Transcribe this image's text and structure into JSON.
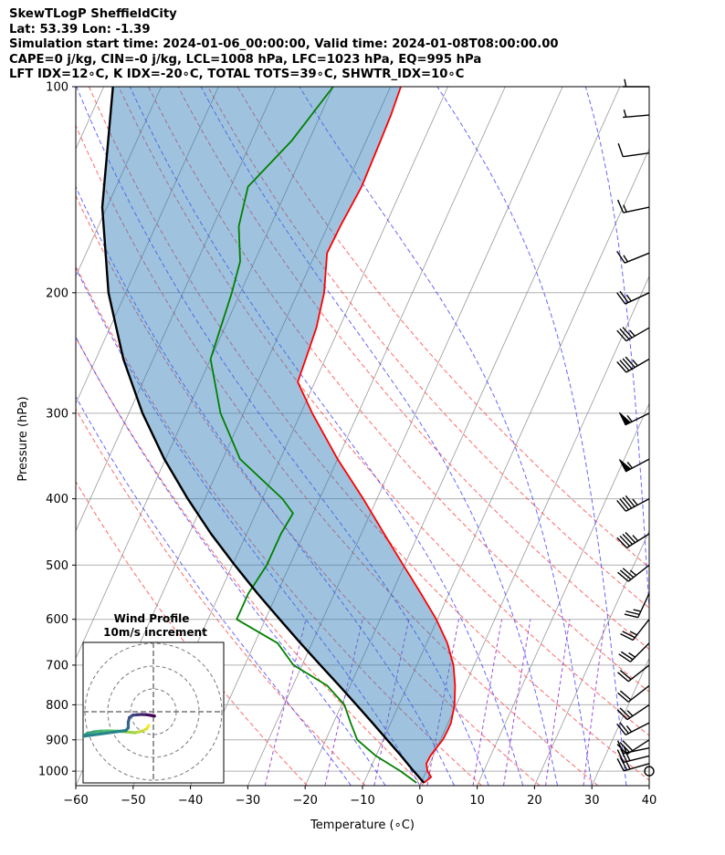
{
  "title_lines": [
    "SkewTLogP SheffieldCity",
    "Lat: 53.39   Lon: -1.39",
    "Simulation start time: 2024-01-06_00:00:00, Valid time: 2024-01-08T08:00:00.00",
    "CAPE=0 j/kg, CIN=-0 j/kg, LCL=1008 hPa, LFC=1023 hPa, EQ=995 hPa",
    "LFT IDX=12∘C, K IDX=-20∘C, TOTAL TOTS=39∘C, SHWTR_IDX=10∘C"
  ],
  "chart_data": {
    "type": "line",
    "chart_kind": "skew-T log-P diagram",
    "xlabel": "Temperature (∘C)",
    "ylabel": "Pressure (hPa)",
    "xlim": [
      -60,
      40
    ],
    "ylim": [
      1050,
      100
    ],
    "y_scale": "log",
    "grid": true,
    "x_ticks": [
      -60,
      -50,
      -40,
      -30,
      -20,
      -10,
      0,
      10,
      20,
      30,
      40
    ],
    "y_ticks": [
      100,
      200,
      300,
      400,
      500,
      600,
      700,
      800,
      900,
      1000
    ],
    "series": [
      {
        "role": "temperature",
        "color": "#ff0000",
        "points": [
          [
            1040,
            0.5
          ],
          [
            1020,
            1.3
          ],
          [
            1000,
            0.2
          ],
          [
            975,
            -0.6
          ],
          [
            950,
            -0.5
          ],
          [
            925,
            -0.1
          ],
          [
            900,
            0.4
          ],
          [
            875,
            0.5
          ],
          [
            850,
            0.5
          ],
          [
            800,
            -0.3
          ],
          [
            750,
            -1.7
          ],
          [
            700,
            -3.6
          ],
          [
            650,
            -6.4
          ],
          [
            600,
            -10.2
          ],
          [
            550,
            -14.9
          ],
          [
            500,
            -20.2
          ],
          [
            450,
            -26.0
          ],
          [
            400,
            -32.4
          ],
          [
            350,
            -40.0
          ],
          [
            300,
            -48.0
          ],
          [
            270,
            -53.0
          ],
          [
            250,
            -53.4
          ],
          [
            225,
            -54.0
          ],
          [
            200,
            -55.4
          ],
          [
            175,
            -58.0
          ],
          [
            160,
            -57.8
          ],
          [
            140,
            -57.2
          ],
          [
            120,
            -57.5
          ],
          [
            110,
            -57.7
          ],
          [
            100,
            -58.2
          ]
        ]
      },
      {
        "role": "dewpoint",
        "color": "#008000",
        "points": [
          [
            1040,
            -0.8
          ],
          [
            1000,
            -4.5
          ],
          [
            950,
            -10.0
          ],
          [
            900,
            -14.5
          ],
          [
            850,
            -17.0
          ],
          [
            800,
            -19.5
          ],
          [
            750,
            -24.0
          ],
          [
            700,
            -31.5
          ],
          [
            650,
            -36.0
          ],
          [
            600,
            -45.0
          ],
          [
            550,
            -45.0
          ],
          [
            500,
            -44.0
          ],
          [
            450,
            -44.0
          ],
          [
            420,
            -43.5
          ],
          [
            400,
            -46.5
          ],
          [
            350,
            -57.0
          ],
          [
            300,
            -64.0
          ],
          [
            250,
            -70.0
          ],
          [
            200,
            -71.5
          ],
          [
            180,
            -72.5
          ],
          [
            160,
            -75.5
          ],
          [
            140,
            -77.0
          ],
          [
            120,
            -73.0
          ],
          [
            100,
            -70.0
          ]
        ]
      },
      {
        "role": "parcel",
        "color": "#000000",
        "points": [
          [
            1040,
            0.5
          ],
          [
            1000,
            -2.2
          ],
          [
            950,
            -5.6
          ],
          [
            900,
            -9.3
          ],
          [
            850,
            -13.2
          ],
          [
            800,
            -17.4
          ],
          [
            750,
            -21.9
          ],
          [
            700,
            -26.8
          ],
          [
            650,
            -32.0
          ],
          [
            600,
            -37.5
          ],
          [
            550,
            -43.4
          ],
          [
            500,
            -49.6
          ],
          [
            450,
            -56.2
          ],
          [
            400,
            -63.0
          ],
          [
            350,
            -70.2
          ],
          [
            300,
            -77.6
          ],
          [
            250,
            -85.2
          ],
          [
            200,
            -93.0
          ],
          [
            150,
            -100.8
          ],
          [
            100,
            -108.4
          ]
        ]
      }
    ],
    "reference_lines": {
      "isotherms": [
        -150,
        -140,
        -130,
        -120,
        -110,
        -100,
        -90,
        -80,
        -70,
        -60,
        -50,
        -40,
        -30,
        -20,
        -10,
        0,
        10,
        20,
        30,
        40
      ],
      "dry_adiabats_theta_K": [
        250,
        260,
        270,
        280,
        290,
        300,
        310,
        320,
        330,
        340,
        350,
        360
      ],
      "moist_adiabats_start_C": [
        -12,
        -6,
        0,
        6,
        12,
        18,
        24,
        30,
        36,
        42
      ],
      "mixing_lines_gkg": [
        0.4,
        1,
        2,
        4,
        7,
        10,
        16,
        24
      ],
      "dry_adiabat_color": "#ff4444",
      "moist_adiabat_color": "#3333ff",
      "mixing_line_color": "#8822cc",
      "isotherm_color": "#999999"
    },
    "shading": {
      "between": [
        "temperature",
        "parcel"
      ],
      "color": "#2a7ab7",
      "alpha": 0.45
    },
    "wind_barbs": [
      {
        "p": 1000,
        "speed_kt": 0,
        "dir": 0
      },
      {
        "p": 975,
        "speed_kt": 25,
        "dir": 254
      },
      {
        "p": 950,
        "speed_kt": 25,
        "dir": 256
      },
      {
        "p": 925,
        "speed_kt": 15,
        "dir": 258
      },
      {
        "p": 900,
        "speed_kt": 30,
        "dir": 237
      },
      {
        "p": 850,
        "speed_kt": 25,
        "dir": 243
      },
      {
        "p": 800,
        "speed_kt": 25,
        "dir": 236
      },
      {
        "p": 750,
        "speed_kt": 20,
        "dir": 232
      },
      {
        "p": 700,
        "speed_kt": 20,
        "dir": 232
      },
      {
        "p": 650,
        "speed_kt": 25,
        "dir": 225
      },
      {
        "p": 600,
        "speed_kt": 25,
        "dir": 218
      },
      {
        "p": 550,
        "speed_kt": 25,
        "dir": 205
      },
      {
        "p": 500,
        "speed_kt": 35,
        "dir": 232
      },
      {
        "p": 450,
        "speed_kt": 45,
        "dir": 238
      },
      {
        "p": 400,
        "speed_kt": 45,
        "dir": 242
      },
      {
        "p": 350,
        "speed_kt": 55,
        "dir": 242
      },
      {
        "p": 300,
        "speed_kt": 55,
        "dir": 244
      },
      {
        "p": 250,
        "speed_kt": 45,
        "dir": 240
      },
      {
        "p": 225,
        "speed_kt": 35,
        "dir": 240
      },
      {
        "p": 200,
        "speed_kt": 25,
        "dir": 245
      },
      {
        "p": 175,
        "speed_kt": 15,
        "dir": 248
      },
      {
        "p": 150,
        "speed_kt": 15,
        "dir": 258
      },
      {
        "p": 125,
        "speed_kt": 10,
        "dir": 262
      },
      {
        "p": 110,
        "speed_kt": 5,
        "dir": 265
      },
      {
        "p": 100,
        "speed_kt": 5,
        "dir": 270
      }
    ],
    "hodograph": {
      "title": "Wind Profile",
      "subtitle": "10m/s increment",
      "ring_step_ms": 10,
      "rings": 3,
      "points": [
        [
          -2,
          -6
        ],
        [
          -3,
          -7.5
        ],
        [
          -5,
          -8.5
        ],
        [
          -8,
          -9.2
        ],
        [
          -12,
          -8.8
        ],
        [
          -16,
          -8.5
        ],
        [
          -20,
          -8.4
        ],
        [
          -23,
          -8.5
        ],
        [
          -26,
          -8.8
        ],
        [
          -29,
          -9.5
        ],
        [
          -30,
          -10.2
        ],
        [
          -31,
          -10.8
        ],
        [
          -12,
          -8.2
        ],
        [
          -11,
          -7
        ],
        [
          -11,
          -4.5
        ],
        [
          -10.5,
          -2.5
        ],
        [
          -9,
          -1.5
        ],
        [
          -7,
          -1.3
        ],
        [
          -5,
          -1.2
        ],
        [
          -3,
          -1.3
        ],
        [
          -1,
          -1.6
        ],
        [
          0.5,
          -1.9
        ]
      ]
    }
  }
}
